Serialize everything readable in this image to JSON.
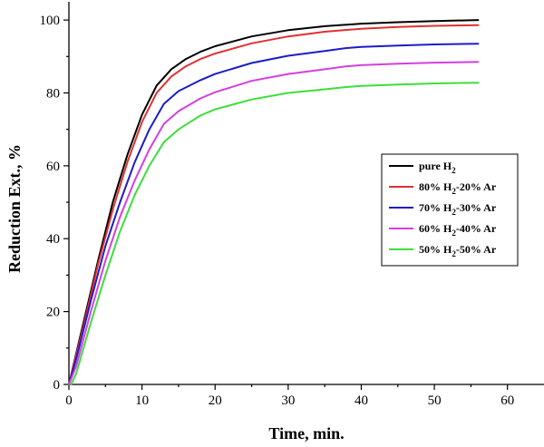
{
  "chart_data": {
    "type": "line",
    "xlabel": "Time, min.",
    "ylabel": "Reduction Ext., %",
    "xlim": [
      0,
      65
    ],
    "ylim": [
      0,
      105
    ],
    "xticks": [
      0,
      10,
      20,
      30,
      40,
      50,
      60
    ],
    "yticks": [
      0,
      20,
      40,
      60,
      80,
      100
    ],
    "grid": false,
    "legend_position": "right",
    "series": [
      {
        "name": "pure H",
        "sub": "2",
        "tail": "",
        "color": "#000000",
        "points": [
          [
            0,
            0
          ],
          [
            2,
            17
          ],
          [
            4,
            34
          ],
          [
            6,
            50
          ],
          [
            8,
            63
          ],
          [
            10,
            74
          ],
          [
            12,
            82
          ],
          [
            14,
            86.5
          ],
          [
            16,
            89.3
          ],
          [
            18,
            91.3
          ],
          [
            20,
            92.8
          ],
          [
            25,
            95.5
          ],
          [
            30,
            97.2
          ],
          [
            35,
            98.3
          ],
          [
            40,
            99.0
          ],
          [
            45,
            99.4
          ],
          [
            50,
            99.7
          ],
          [
            56,
            100
          ]
        ]
      },
      {
        "name": "80% H",
        "sub": "2",
        "tail": "-20% Ar",
        "color": "#e03131",
        "points": [
          [
            0,
            0
          ],
          [
            2,
            16
          ],
          [
            4,
            33
          ],
          [
            6,
            48
          ],
          [
            8,
            61
          ],
          [
            10,
            72
          ],
          [
            12,
            80
          ],
          [
            14,
            84.5
          ],
          [
            16,
            87.3
          ],
          [
            18,
            89.3
          ],
          [
            20,
            90.8
          ],
          [
            25,
            93.6
          ],
          [
            30,
            95.5
          ],
          [
            35,
            96.8
          ],
          [
            40,
            97.6
          ],
          [
            45,
            98.1
          ],
          [
            50,
            98.4
          ],
          [
            56,
            98.6
          ]
        ]
      },
      {
        "name": "70% H",
        "sub": "2",
        "tail": "-30% Ar",
        "color": "#1c1cc8",
        "points": [
          [
            0,
            0
          ],
          [
            1,
            7
          ],
          [
            3,
            23
          ],
          [
            5,
            38
          ],
          [
            7,
            50
          ],
          [
            9,
            61
          ],
          [
            11,
            70
          ],
          [
            13,
            77
          ],
          [
            15,
            80.5
          ],
          [
            18,
            83.5
          ],
          [
            20,
            85.2
          ],
          [
            25,
            88.2
          ],
          [
            30,
            90.2
          ],
          [
            35,
            91.5
          ],
          [
            38,
            92.3
          ],
          [
            40,
            92.6
          ],
          [
            45,
            93.0
          ],
          [
            50,
            93.3
          ],
          [
            56,
            93.5
          ]
        ]
      },
      {
        "name": "60% H",
        "sub": "2",
        "tail": "-40% Ar",
        "color": "#d43fdf",
        "points": [
          [
            0,
            0
          ],
          [
            1,
            5
          ],
          [
            3,
            20
          ],
          [
            5,
            34
          ],
          [
            7,
            46
          ],
          [
            9,
            56
          ],
          [
            11,
            64.5
          ],
          [
            13,
            71.5
          ],
          [
            15,
            75
          ],
          [
            18,
            78.5
          ],
          [
            20,
            80.2
          ],
          [
            25,
            83.3
          ],
          [
            30,
            85.2
          ],
          [
            35,
            86.5
          ],
          [
            38,
            87.3
          ],
          [
            40,
            87.6
          ],
          [
            45,
            88.0
          ],
          [
            50,
            88.3
          ],
          [
            56,
            88.5
          ]
        ]
      },
      {
        "name": "50% H",
        "sub": "2",
        "tail": "-50% Ar",
        "color": "#3ede3a",
        "points": [
          [
            0.3,
            0
          ],
          [
            1,
            3
          ],
          [
            3,
            17
          ],
          [
            5,
            30
          ],
          [
            7,
            42
          ],
          [
            9,
            52
          ],
          [
            11,
            60
          ],
          [
            13,
            66.5
          ],
          [
            15,
            70
          ],
          [
            18,
            73.8
          ],
          [
            20,
            75.5
          ],
          [
            25,
            78.2
          ],
          [
            30,
            80.0
          ],
          [
            35,
            81.0
          ],
          [
            38,
            81.6
          ],
          [
            40,
            81.9
          ],
          [
            45,
            82.3
          ],
          [
            50,
            82.6
          ],
          [
            56,
            82.8
          ]
        ]
      }
    ]
  }
}
